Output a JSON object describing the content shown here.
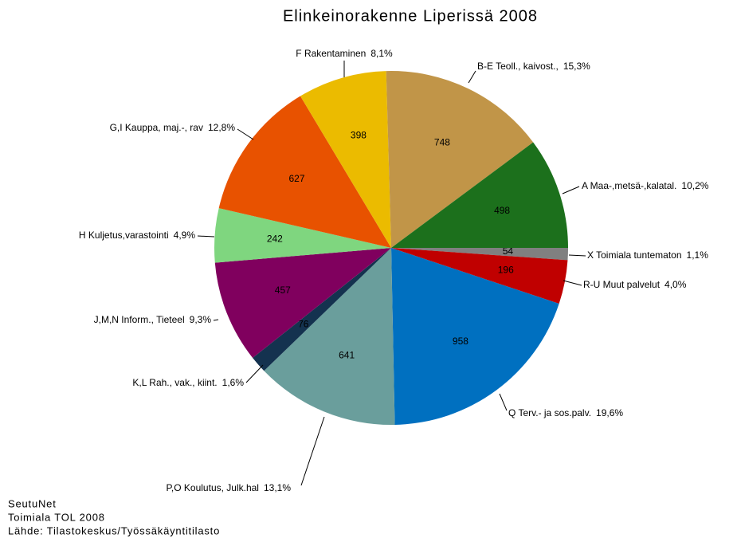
{
  "chart_data": {
    "type": "pie",
    "title": "Elinkeinorakenne Liperissä 2008",
    "categories": [
      "X Toimiala tuntematon",
      "R-U Muut palvelut",
      "Q Terv.- ja sos.palv.",
      "P,O Koulutus, Julk.hal",
      "K,L Rah., vak., kiint.",
      "J,M,N Inform., Tieteel",
      "H Kuljetus,varastointi",
      "G,I Kauppa, maj.-, rav",
      "F Rakentaminen",
      "B-E Teoll., kaivost.,",
      "A Maa-,metsä-,kalatal."
    ],
    "values": [
      54,
      196,
      958,
      641,
      76,
      457,
      242,
      627,
      398,
      748,
      498
    ],
    "percents": [
      1.1,
      4.0,
      19.6,
      13.1,
      1.6,
      9.3,
      4.9,
      12.8,
      8.1,
      15.3,
      10.2
    ],
    "percent_labels": [
      "1,1%",
      "4,0%",
      "19,6%",
      "13,1%",
      "1,6%",
      "9,3%",
      "4,9%",
      "12,8%",
      "8,1%",
      "15,3%",
      "10,2%"
    ],
    "colors": [
      "#808080",
      "#c00000",
      "#0070c0",
      "#6a9e9c",
      "#14324f",
      "#80005e",
      "#7fd67f",
      "#e85200",
      "#ebbb00",
      "#c19548",
      "#1c701c"
    ],
    "footer": [
      "SeutuNet",
      "Toimiala TOL 2008",
      "Lähde: Tilastokeskus/Työssäkäyntitilasto"
    ]
  }
}
